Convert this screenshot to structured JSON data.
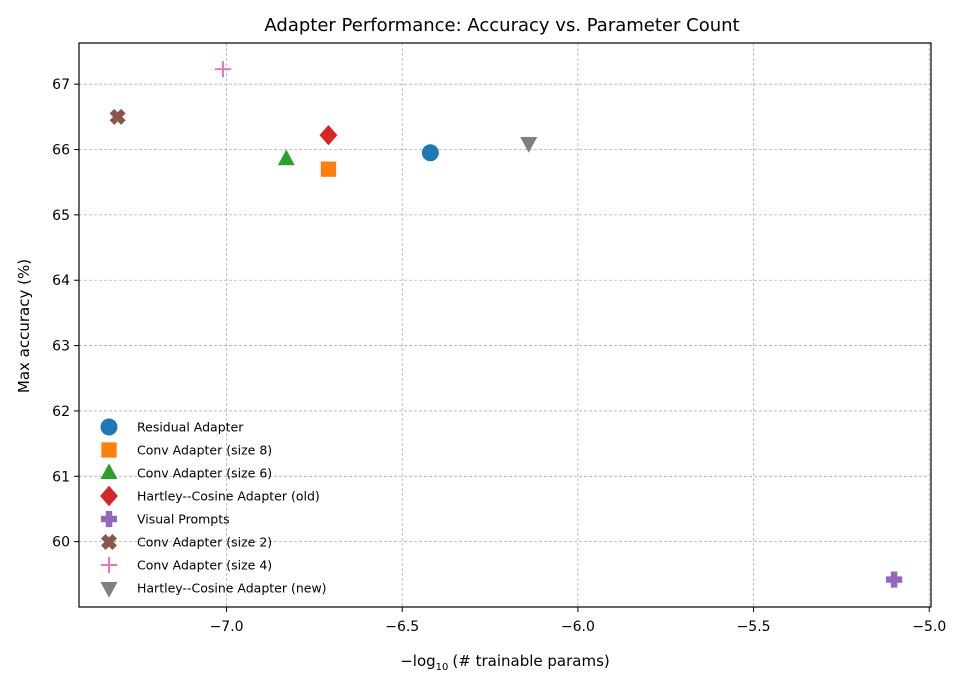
{
  "chart_data": {
    "type": "scatter",
    "title": "Adapter Performance: Accuracy vs. Parameter Count",
    "xlabel_prefix": "−log",
    "xlabel_sub": "10",
    "xlabel_suffix": "(# trainable params)",
    "ylabel": "Max accuracy (%)",
    "xlim": [
      -7.42,
      -4.995
    ],
    "ylim": [
      59.0,
      67.63
    ],
    "xticks": [
      -7.0,
      -6.5,
      -6.0,
      -5.5,
      -5.0
    ],
    "xtick_labels": [
      "−7.0",
      "−6.5",
      "−6.0",
      "−5.5",
      "−5.0"
    ],
    "yticks": [
      60,
      61,
      62,
      63,
      64,
      65,
      66,
      67
    ],
    "ytick_labels": [
      "60",
      "61",
      "62",
      "63",
      "64",
      "65",
      "66",
      "67"
    ],
    "grid": true,
    "legend_position": "lower-left",
    "series": [
      {
        "name": "Residual Adapter",
        "marker": "circle",
        "color": "#1f77b4",
        "x": -6.42,
        "y": 65.95
      },
      {
        "name": "Conv Adapter (size 8)",
        "marker": "square",
        "color": "#ff7f0e",
        "x": -6.71,
        "y": 65.7
      },
      {
        "name": "Conv Adapter (size 6)",
        "marker": "triangle-up",
        "color": "#2ca02c",
        "x": -6.83,
        "y": 65.85
      },
      {
        "name": "Hartley--Cosine Adapter (old)",
        "marker": "diamond",
        "color": "#d62728",
        "x": -6.71,
        "y": 66.22
      },
      {
        "name": "Visual Prompts",
        "marker": "plus-filled",
        "color": "#9467bd",
        "x": -5.1,
        "y": 59.42
      },
      {
        "name": "Conv Adapter (size 2)",
        "marker": "x-filled",
        "color": "#8c564b",
        "x": -7.31,
        "y": 66.5
      },
      {
        "name": "Conv Adapter (size 4)",
        "marker": "plus",
        "color": "#e377c2",
        "x": -7.01,
        "y": 67.23
      },
      {
        "name": "Hartley--Cosine Adapter (new)",
        "marker": "triangle-down",
        "color": "#7f7f7f",
        "x": -6.14,
        "y": 66.1
      }
    ]
  }
}
